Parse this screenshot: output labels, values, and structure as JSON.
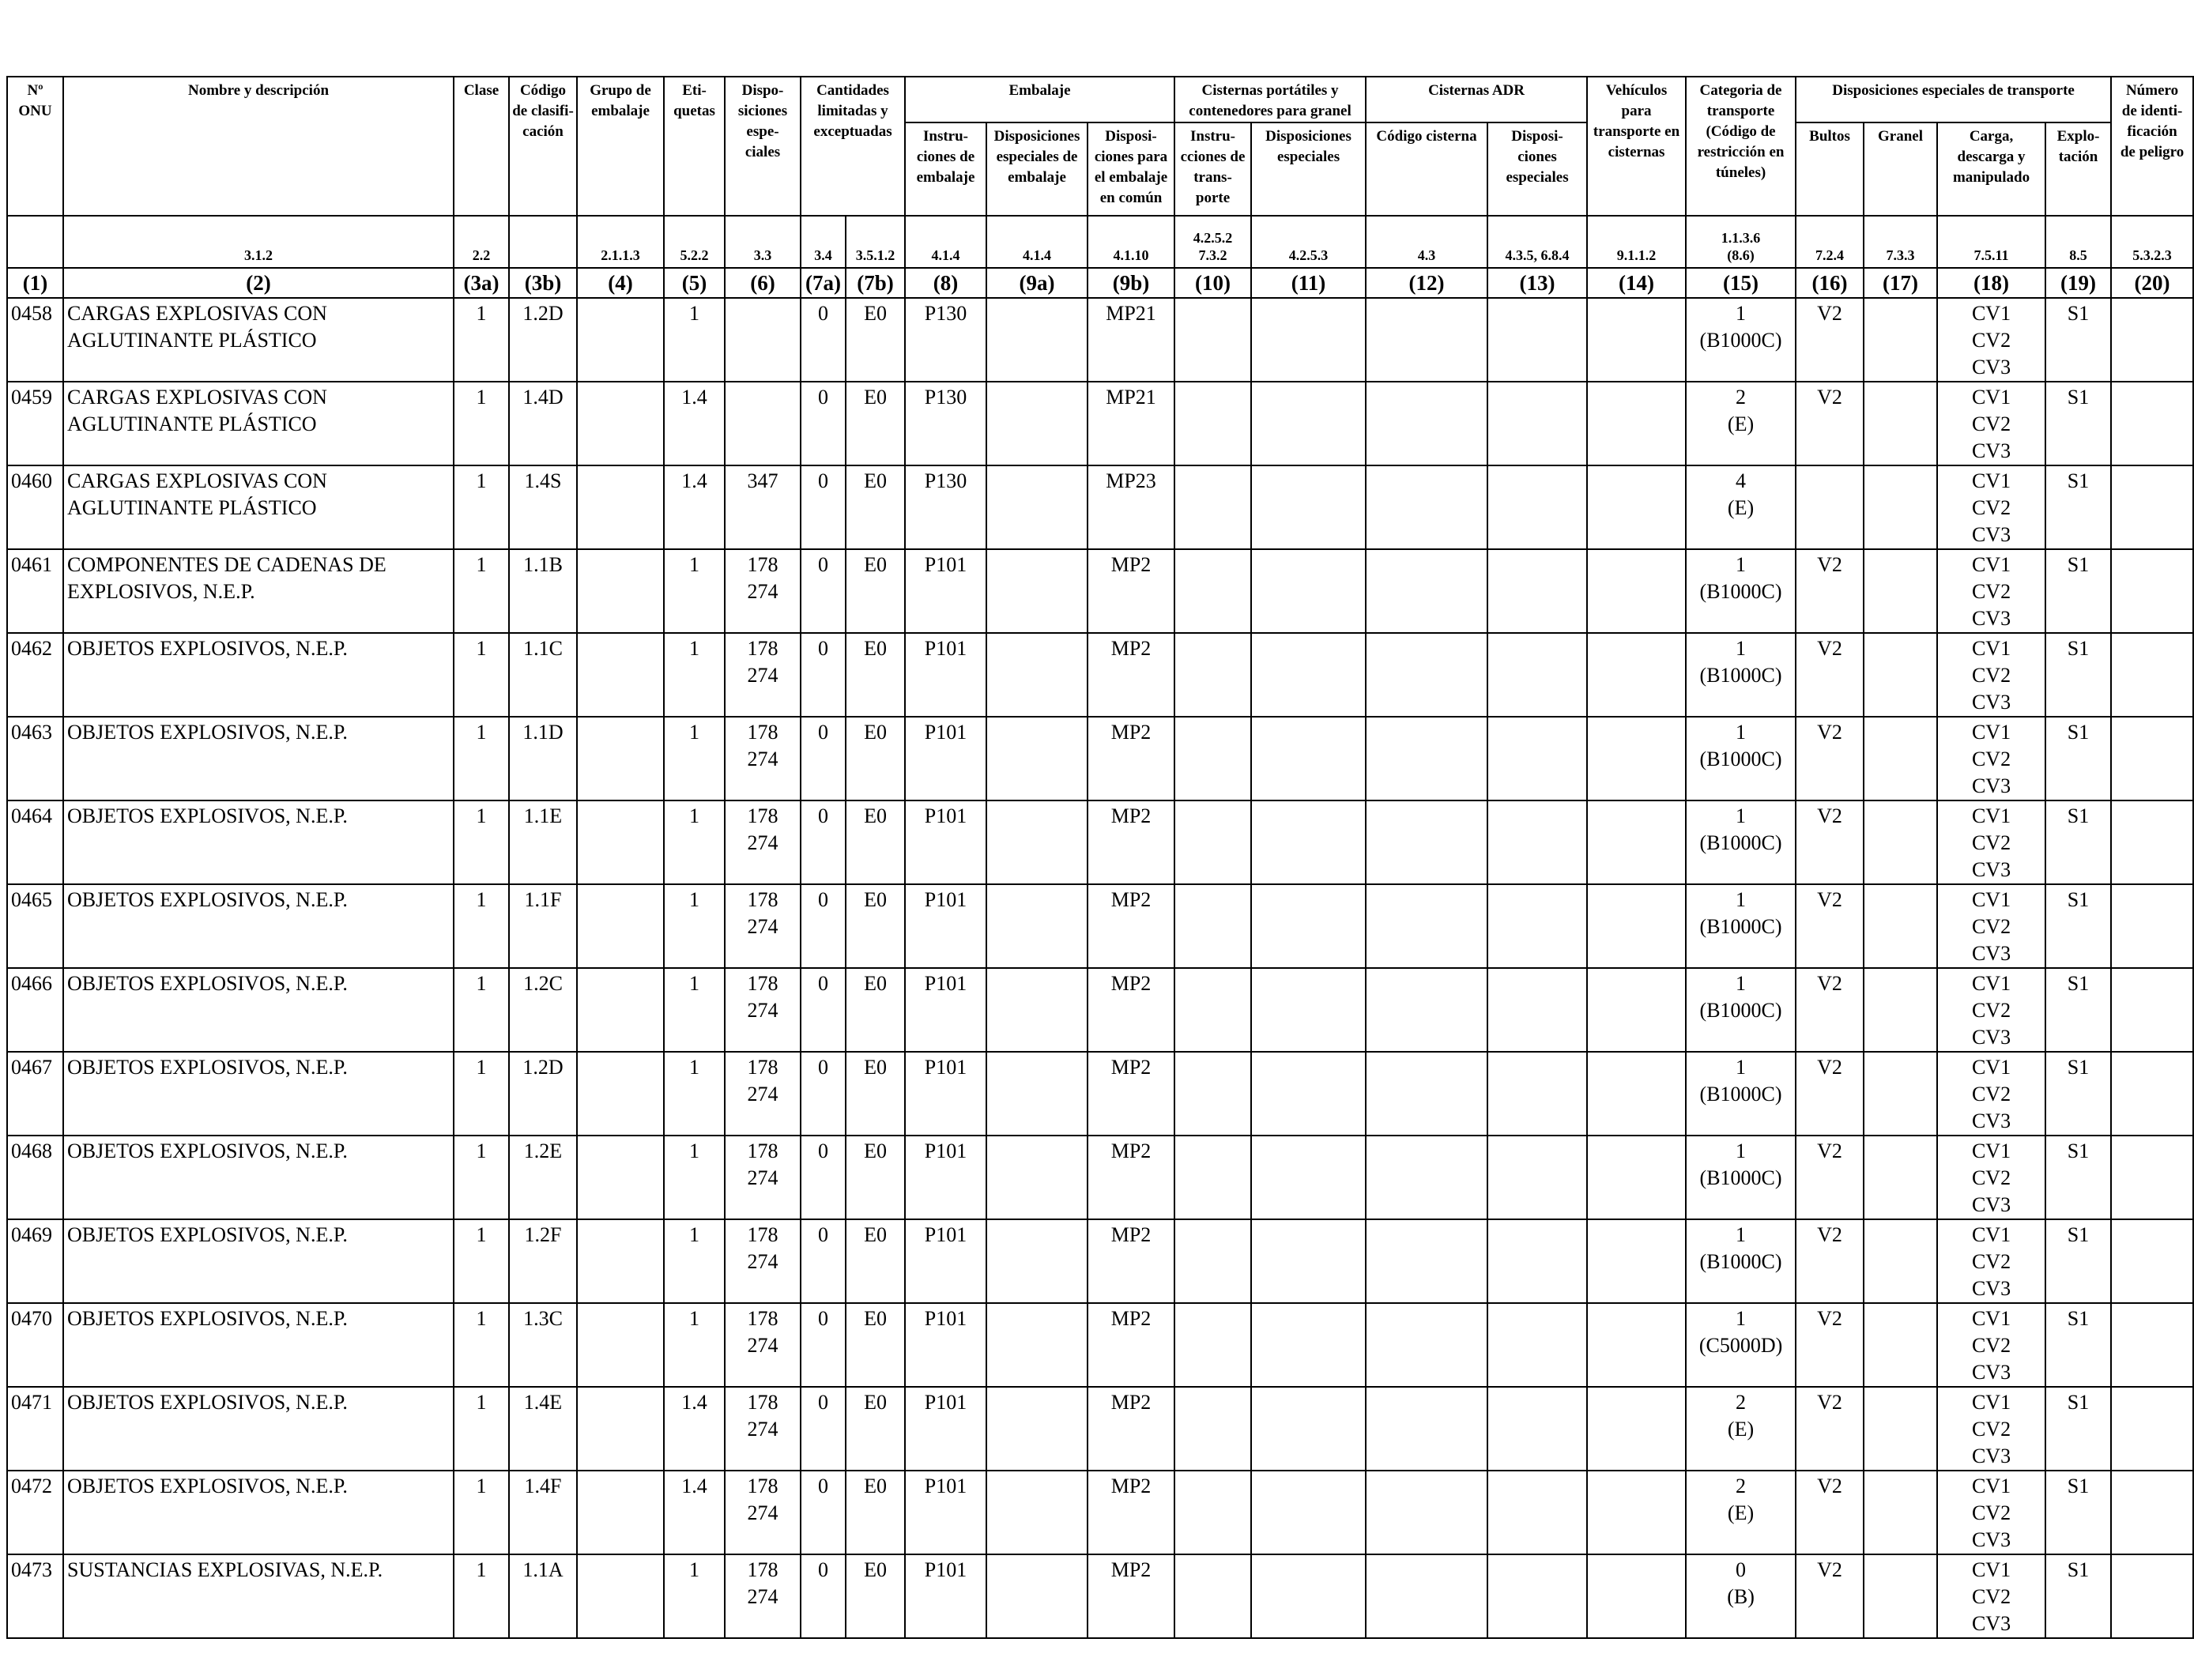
{
  "headers": {
    "onu": "Nº\nONU",
    "name": "Nombre y descripción",
    "clase": "Clase",
    "codigo_clasif": "Código\nde clasifi-\ncación",
    "grupo_embalaje": "Grupo de\nembalaje",
    "etiquetas": "Eti-\nquetas",
    "disposiciones_especiales": "Dispo-\nsiciones\nespe-\nciales",
    "cantidades": "Cantidades\nlimitadas y\nexceptuadas",
    "embalaje": "Embalaje",
    "instrucciones_embalaje": "Instru-\nciones de\nembalaje",
    "disp_especiales_embalaje": "Disposiciones\nespeciales de\nembalaje",
    "disp_embalaje_comun": "Disposi-\nciones para\nel embalaje\nen común",
    "cisternas_portatiles": "Cisternas portátiles y\ncontenedores para granel",
    "instr_transporte": "Instru-\ncciones de\ntrans-\nporte",
    "cp_disposiciones_especiales": "Disposiciones\nespeciales",
    "cisternas_adr": "Cisternas ADR",
    "codigo_cisterna": "Código cisterna",
    "adr_disposiciones_especiales": "Disposi-\nciones\nespeciales",
    "vehiculos": "Vehículos\npara\ntransporte en\ncisternas",
    "categoria_transporte": "Categoria de\ntransporte\n(Código de\nrestricción en\ntúneles)",
    "disp_especiales_transporte": "Disposiciones especiales de transporte",
    "bultos": "Bultos",
    "granel": "Granel",
    "carga": "Carga,\ndescarga y\nmanipulado",
    "explotacion": "Explo-\ntación",
    "numero_peligro": "Número\nde identi-\nficación\nde peligro"
  },
  "refs": [
    "",
    "3.1.2",
    "2.2",
    "",
    "2.1.1.3",
    "5.2.2",
    "3.3",
    "3.4",
    "3.5.1.2",
    "4.1.4",
    "4.1.4",
    "4.1.10",
    "4.2.5.2\n7.3.2",
    "4.2.5.3",
    "4.3",
    "4.3.5, 6.8.4",
    "9.1.1.2",
    "1.1.3.6\n(8.6)",
    "7.2.4",
    "7.3.3",
    "7.5.11",
    "8.5",
    "5.3.2.3"
  ],
  "column_numbers": [
    "(1)",
    "(2)",
    "(3a)",
    "(3b)",
    "(4)",
    "(5)",
    "(6)",
    "(7a)",
    "(7b)",
    "(8)",
    "(9a)",
    "(9b)",
    "(10)",
    "(11)",
    "(12)",
    "(13)",
    "(14)",
    "(15)",
    "(16)",
    "(17)",
    "(18)",
    "(19)",
    "(20)"
  ],
  "rows": [
    {
      "onu": "0458",
      "name": "CARGAS EXPLOSIVAS CON\nAGLUTINANTE PLÁSTICO",
      "clase": "1",
      "codigo": "1.2D",
      "grupo": "",
      "etiquetas": "1",
      "disp": "",
      "c7a": "0",
      "c7b": "E0",
      "instr": "P130",
      "disp9a": "",
      "disp9b": "MP21",
      "c10": "",
      "c11": "",
      "c12": "",
      "c13": "",
      "c14": "",
      "cat": "1\n(B1000C)",
      "bultos": "V2",
      "granel": "",
      "carga": "CV1\nCV2\nCV3",
      "explot": "S1",
      "peligro": ""
    },
    {
      "onu": "0459",
      "name": "CARGAS EXPLOSIVAS CON\nAGLUTINANTE PLÁSTICO",
      "clase": "1",
      "codigo": "1.4D",
      "grupo": "",
      "etiquetas": "1.4",
      "disp": "",
      "c7a": "0",
      "c7b": "E0",
      "instr": "P130",
      "disp9a": "",
      "disp9b": "MP21",
      "c10": "",
      "c11": "",
      "c12": "",
      "c13": "",
      "c14": "",
      "cat": "2\n(E)",
      "bultos": "V2",
      "granel": "",
      "carga": "CV1\nCV2\nCV3",
      "explot": "S1",
      "peligro": ""
    },
    {
      "onu": "0460",
      "name": "CARGAS EXPLOSIVAS CON\nAGLUTINANTE PLÁSTICO",
      "clase": "1",
      "codigo": "1.4S",
      "grupo": "",
      "etiquetas": "1.4",
      "disp": "347",
      "c7a": "0",
      "c7b": "E0",
      "instr": "P130",
      "disp9a": "",
      "disp9b": "MP23",
      "c10": "",
      "c11": "",
      "c12": "",
      "c13": "",
      "c14": "",
      "cat": "4\n(E)",
      "bultos": "",
      "granel": "",
      "carga": "CV1\nCV2\nCV3",
      "explot": "S1",
      "peligro": ""
    },
    {
      "onu": "0461",
      "name": "COMPONENTES DE CADENAS DE\nEXPLOSIVOS, N.E.P.",
      "clase": "1",
      "codigo": "1.1B",
      "grupo": "",
      "etiquetas": "1",
      "disp": "178\n274",
      "c7a": "0",
      "c7b": "E0",
      "instr": "P101",
      "disp9a": "",
      "disp9b": "MP2",
      "c10": "",
      "c11": "",
      "c12": "",
      "c13": "",
      "c14": "",
      "cat": "1\n(B1000C)",
      "bultos": "V2",
      "granel": "",
      "carga": "CV1\nCV2\nCV3",
      "explot": "S1",
      "peligro": ""
    },
    {
      "onu": "0462",
      "name": "OBJETOS EXPLOSIVOS, N.E.P.",
      "clase": "1",
      "codigo": "1.1C",
      "grupo": "",
      "etiquetas": "1",
      "disp": "178\n274",
      "c7a": "0",
      "c7b": "E0",
      "instr": "P101",
      "disp9a": "",
      "disp9b": "MP2",
      "c10": "",
      "c11": "",
      "c12": "",
      "c13": "",
      "c14": "",
      "cat": "1\n(B1000C)",
      "bultos": "V2",
      "granel": "",
      "carga": "CV1\nCV2\nCV3",
      "explot": "S1",
      "peligro": ""
    },
    {
      "onu": "0463",
      "name": "OBJETOS EXPLOSIVOS, N.E.P.",
      "clase": "1",
      "codigo": "1.1D",
      "grupo": "",
      "etiquetas": "1",
      "disp": "178\n274",
      "c7a": "0",
      "c7b": "E0",
      "instr": "P101",
      "disp9a": "",
      "disp9b": "MP2",
      "c10": "",
      "c11": "",
      "c12": "",
      "c13": "",
      "c14": "",
      "cat": "1\n(B1000C)",
      "bultos": "V2",
      "granel": "",
      "carga": "CV1\nCV2\nCV3",
      "explot": "S1",
      "peligro": ""
    },
    {
      "onu": "0464",
      "name": "OBJETOS EXPLOSIVOS, N.E.P.",
      "clase": "1",
      "codigo": "1.1E",
      "grupo": "",
      "etiquetas": "1",
      "disp": "178\n274",
      "c7a": "0",
      "c7b": "E0",
      "instr": "P101",
      "disp9a": "",
      "disp9b": "MP2",
      "c10": "",
      "c11": "",
      "c12": "",
      "c13": "",
      "c14": "",
      "cat": "1\n(B1000C)",
      "bultos": "V2",
      "granel": "",
      "carga": "CV1\nCV2\nCV3",
      "explot": "S1",
      "peligro": ""
    },
    {
      "onu": "0465",
      "name": "OBJETOS EXPLOSIVOS, N.E.P.",
      "clase": "1",
      "codigo": "1.1F",
      "grupo": "",
      "etiquetas": "1",
      "disp": "178\n274",
      "c7a": "0",
      "c7b": "E0",
      "instr": "P101",
      "disp9a": "",
      "disp9b": "MP2",
      "c10": "",
      "c11": "",
      "c12": "",
      "c13": "",
      "c14": "",
      "cat": "1\n(B1000C)",
      "bultos": "V2",
      "granel": "",
      "carga": "CV1\nCV2\nCV3",
      "explot": "S1",
      "peligro": ""
    },
    {
      "onu": "0466",
      "name": "OBJETOS EXPLOSIVOS, N.E.P.",
      "clase": "1",
      "codigo": "1.2C",
      "grupo": "",
      "etiquetas": "1",
      "disp": "178\n274",
      "c7a": "0",
      "c7b": "E0",
      "instr": "P101",
      "disp9a": "",
      "disp9b": "MP2",
      "c10": "",
      "c11": "",
      "c12": "",
      "c13": "",
      "c14": "",
      "cat": "1\n(B1000C)",
      "bultos": "V2",
      "granel": "",
      "carga": "CV1\nCV2\nCV3",
      "explot": "S1",
      "peligro": ""
    },
    {
      "onu": "0467",
      "name": "OBJETOS EXPLOSIVOS, N.E.P.",
      "clase": "1",
      "codigo": "1.2D",
      "grupo": "",
      "etiquetas": "1",
      "disp": "178\n274",
      "c7a": "0",
      "c7b": "E0",
      "instr": "P101",
      "disp9a": "",
      "disp9b": "MP2",
      "c10": "",
      "c11": "",
      "c12": "",
      "c13": "",
      "c14": "",
      "cat": "1\n(B1000C)",
      "bultos": "V2",
      "granel": "",
      "carga": "CV1\nCV2\nCV3",
      "explot": "S1",
      "peligro": ""
    },
    {
      "onu": "0468",
      "name": "OBJETOS EXPLOSIVOS, N.E.P.",
      "clase": "1",
      "codigo": "1.2E",
      "grupo": "",
      "etiquetas": "1",
      "disp": "178\n274",
      "c7a": "0",
      "c7b": "E0",
      "instr": "P101",
      "disp9a": "",
      "disp9b": "MP2",
      "c10": "",
      "c11": "",
      "c12": "",
      "c13": "",
      "c14": "",
      "cat": "1\n(B1000C)",
      "bultos": "V2",
      "granel": "",
      "carga": "CV1\nCV2\nCV3",
      "explot": "S1",
      "peligro": ""
    },
    {
      "onu": "0469",
      "name": "OBJETOS EXPLOSIVOS, N.E.P.",
      "clase": "1",
      "codigo": "1.2F",
      "grupo": "",
      "etiquetas": "1",
      "disp": "178\n274",
      "c7a": "0",
      "c7b": "E0",
      "instr": "P101",
      "disp9a": "",
      "disp9b": "MP2",
      "c10": "",
      "c11": "",
      "c12": "",
      "c13": "",
      "c14": "",
      "cat": "1\n(B1000C)",
      "bultos": "V2",
      "granel": "",
      "carga": "CV1\nCV2\nCV3",
      "explot": "S1",
      "peligro": ""
    },
    {
      "onu": "0470",
      "name": "OBJETOS EXPLOSIVOS, N.E.P.",
      "clase": "1",
      "codigo": "1.3C",
      "grupo": "",
      "etiquetas": "1",
      "disp": "178\n274",
      "c7a": "0",
      "c7b": "E0",
      "instr": "P101",
      "disp9a": "",
      "disp9b": "MP2",
      "c10": "",
      "c11": "",
      "c12": "",
      "c13": "",
      "c14": "",
      "cat": "1\n(C5000D)",
      "bultos": "V2",
      "granel": "",
      "carga": "CV1\nCV2\nCV3",
      "explot": "S1",
      "peligro": ""
    },
    {
      "onu": "0471",
      "name": "OBJETOS EXPLOSIVOS, N.E.P.",
      "clase": "1",
      "codigo": "1.4E",
      "grupo": "",
      "etiquetas": "1.4",
      "disp": "178\n274",
      "c7a": "0",
      "c7b": "E0",
      "instr": "P101",
      "disp9a": "",
      "disp9b": "MP2",
      "c10": "",
      "c11": "",
      "c12": "",
      "c13": "",
      "c14": "",
      "cat": "2\n(E)",
      "bultos": "V2",
      "granel": "",
      "carga": "CV1\nCV2\nCV3",
      "explot": "S1",
      "peligro": ""
    },
    {
      "onu": "0472",
      "name": "OBJETOS EXPLOSIVOS, N.E.P.",
      "clase": "1",
      "codigo": "1.4F",
      "grupo": "",
      "etiquetas": "1.4",
      "disp": "178\n274",
      "c7a": "0",
      "c7b": "E0",
      "instr": "P101",
      "disp9a": "",
      "disp9b": "MP2",
      "c10": "",
      "c11": "",
      "c12": "",
      "c13": "",
      "c14": "",
      "cat": "2\n(E)",
      "bultos": "V2",
      "granel": "",
      "carga": "CV1\nCV2\nCV3",
      "explot": "S1",
      "peligro": ""
    },
    {
      "onu": "0473",
      "name": "SUSTANCIAS EXPLOSIVAS, N.E.P.",
      "clase": "1",
      "codigo": "1.1A",
      "grupo": "",
      "etiquetas": "1",
      "disp": "178\n274",
      "c7a": "0",
      "c7b": "E0",
      "instr": "P101",
      "disp9a": "",
      "disp9b": "MP2",
      "c10": "",
      "c11": "",
      "c12": "",
      "c13": "",
      "c14": "",
      "cat": "0\n(B)",
      "bultos": "V2",
      "granel": "",
      "carga": "CV1\nCV2\nCV3",
      "explot": "S1",
      "peligro": ""
    }
  ]
}
